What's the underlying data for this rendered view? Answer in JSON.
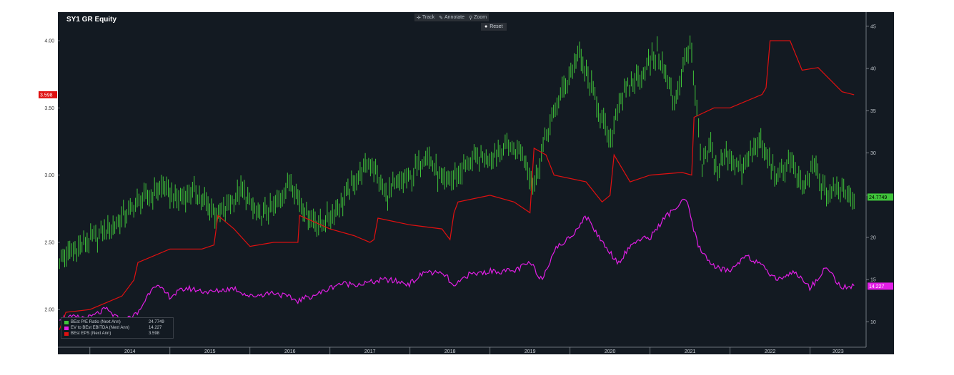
{
  "title": "SY1 GR Equity",
  "toolbar": {
    "track_label": "Track",
    "annotate_label": "Annotate",
    "zoom_label": "Zoom",
    "reset_label": "Reset"
  },
  "colors": {
    "background": "#131a22",
    "pe_series": "#3fc43a",
    "ev_series": "#e21ee6",
    "eps_series": "#e01010"
  },
  "chart_data": {
    "type": "line",
    "title": "SY1 GR Equity",
    "x_range": [
      "2013.6",
      "2023.7"
    ],
    "x_tick_labels": [
      "2014",
      "2015",
      "2016",
      "2017",
      "2018",
      "2019",
      "2020",
      "2021",
      "2022",
      "2023"
    ],
    "left_axis": {
      "ylim": [
        1.72,
        4.17
      ],
      "ticks": [
        "4.00",
        "3.50",
        "3.00",
        "2.50",
        "2.00"
      ]
    },
    "right_axis": {
      "ylim": [
        7,
        46
      ],
      "ticks": [
        "45",
        "40",
        "35",
        "30",
        "25",
        "20",
        "15",
        "10"
      ]
    },
    "grid": false,
    "legend_position": "bottom-left",
    "series": [
      {
        "name": "BEst P/E Ratio (Next Ann)",
        "axis": "right",
        "last_value": "24.7749",
        "x": [
          2013.62,
          2014.0,
          2014.3,
          2014.6,
          2014.9,
          2015.1,
          2015.3,
          2015.6,
          2015.9,
          2016.1,
          2016.3,
          2016.5,
          2016.7,
          2016.9,
          2017.1,
          2017.3,
          2017.5,
          2017.7,
          2017.8,
          2018.0,
          2018.2,
          2018.4,
          2018.55,
          2018.75,
          2019.0,
          2019.2,
          2019.4,
          2019.55,
          2019.7,
          2019.85,
          2020.1,
          2020.3,
          2020.5,
          2020.6,
          2020.75,
          2020.9,
          2021.1,
          2021.3,
          2021.5,
          2021.65,
          2021.75,
          2021.85,
          2021.95,
          2022.15,
          2022.35,
          2022.6,
          2022.75,
          2022.9,
          2023.05,
          2023.2,
          2023.4,
          2023.55
        ],
        "values": [
          17.5,
          19.5,
          21.5,
          24,
          26,
          24.5,
          25.5,
          22.5,
          25.5,
          22.5,
          23.5,
          27,
          23,
          21.5,
          23.5,
          26.5,
          29,
          25,
          26,
          27,
          30,
          26.5,
          27,
          29,
          29.5,
          31,
          30,
          26,
          32,
          36,
          41.5,
          37,
          31,
          36,
          38,
          39.5,
          42,
          36,
          43,
          28,
          31,
          28,
          30,
          28,
          31.5,
          27,
          29.5,
          25.5,
          28.5,
          25,
          26,
          24.77
        ]
      },
      {
        "name": "EV to BEst EBITDA (Next Ann)",
        "axis": "right",
        "last_value": "14.227",
        "x": [
          2013.62,
          2014.0,
          2014.2,
          2014.4,
          2014.6,
          2014.8,
          2015.0,
          2015.2,
          2015.5,
          2015.8,
          2016.0,
          2016.3,
          2016.6,
          2016.9,
          2017.1,
          2017.4,
          2017.7,
          2018.0,
          2018.2,
          2018.45,
          2018.55,
          2018.7,
          2019.0,
          2019.3,
          2019.5,
          2019.65,
          2019.8,
          2020.0,
          2020.2,
          2020.4,
          2020.6,
          2020.8,
          2021.0,
          2021.2,
          2021.45,
          2021.6,
          2021.8,
          2022.0,
          2022.2,
          2022.4,
          2022.6,
          2022.8,
          2023.0,
          2023.2,
          2023.4,
          2023.55
        ],
        "values": [
          10.5,
          10.5,
          11.5,
          10,
          11,
          14.5,
          13,
          14,
          13.5,
          14,
          13,
          13.5,
          12.5,
          13.5,
          14.5,
          14.5,
          15,
          14.5,
          16,
          15.5,
          14,
          15.5,
          16,
          16,
          17,
          15,
          18.5,
          20,
          22.5,
          19.5,
          17,
          19.5,
          20,
          22.5,
          24.5,
          19,
          16.5,
          16,
          18,
          16.5,
          15,
          16,
          14,
          16.5,
          14,
          14.23
        ]
      },
      {
        "name": "BEst EPS (Next Ann)",
        "axis": "left",
        "last_value": "3.598",
        "x": [
          2013.62,
          2013.7,
          2014.0,
          2014.4,
          2014.55,
          2014.6,
          2015.0,
          2015.4,
          2015.55,
          2015.6,
          2015.8,
          2016.0,
          2016.3,
          2016.6,
          2016.62,
          2017.0,
          2017.3,
          2017.5,
          2017.55,
          2017.6,
          2018.0,
          2018.4,
          2018.5,
          2018.55,
          2018.6,
          2019.0,
          2019.3,
          2019.5,
          2019.55,
          2019.7,
          2019.8,
          2020.2,
          2020.4,
          2020.5,
          2020.55,
          2020.75,
          2021.0,
          2021.4,
          2021.52,
          2021.55,
          2021.8,
          2022.0,
          2022.4,
          2022.45,
          2022.5,
          2022.75,
          2022.9,
          2023.1,
          2023.4,
          2023.55
        ],
        "values": [
          1.85,
          1.98,
          2.0,
          2.1,
          2.22,
          2.35,
          2.45,
          2.45,
          2.48,
          2.7,
          2.6,
          2.47,
          2.5,
          2.5,
          2.7,
          2.6,
          2.55,
          2.5,
          2.52,
          2.68,
          2.63,
          2.6,
          2.52,
          2.72,
          2.8,
          2.85,
          2.8,
          2.72,
          3.2,
          3.15,
          3.0,
          2.95,
          2.8,
          2.85,
          3.15,
          2.95,
          3.0,
          3.02,
          3.0,
          3.43,
          3.5,
          3.5,
          3.6,
          3.65,
          4.0,
          4.0,
          3.78,
          3.8,
          3.62,
          3.598
        ]
      }
    ]
  }
}
